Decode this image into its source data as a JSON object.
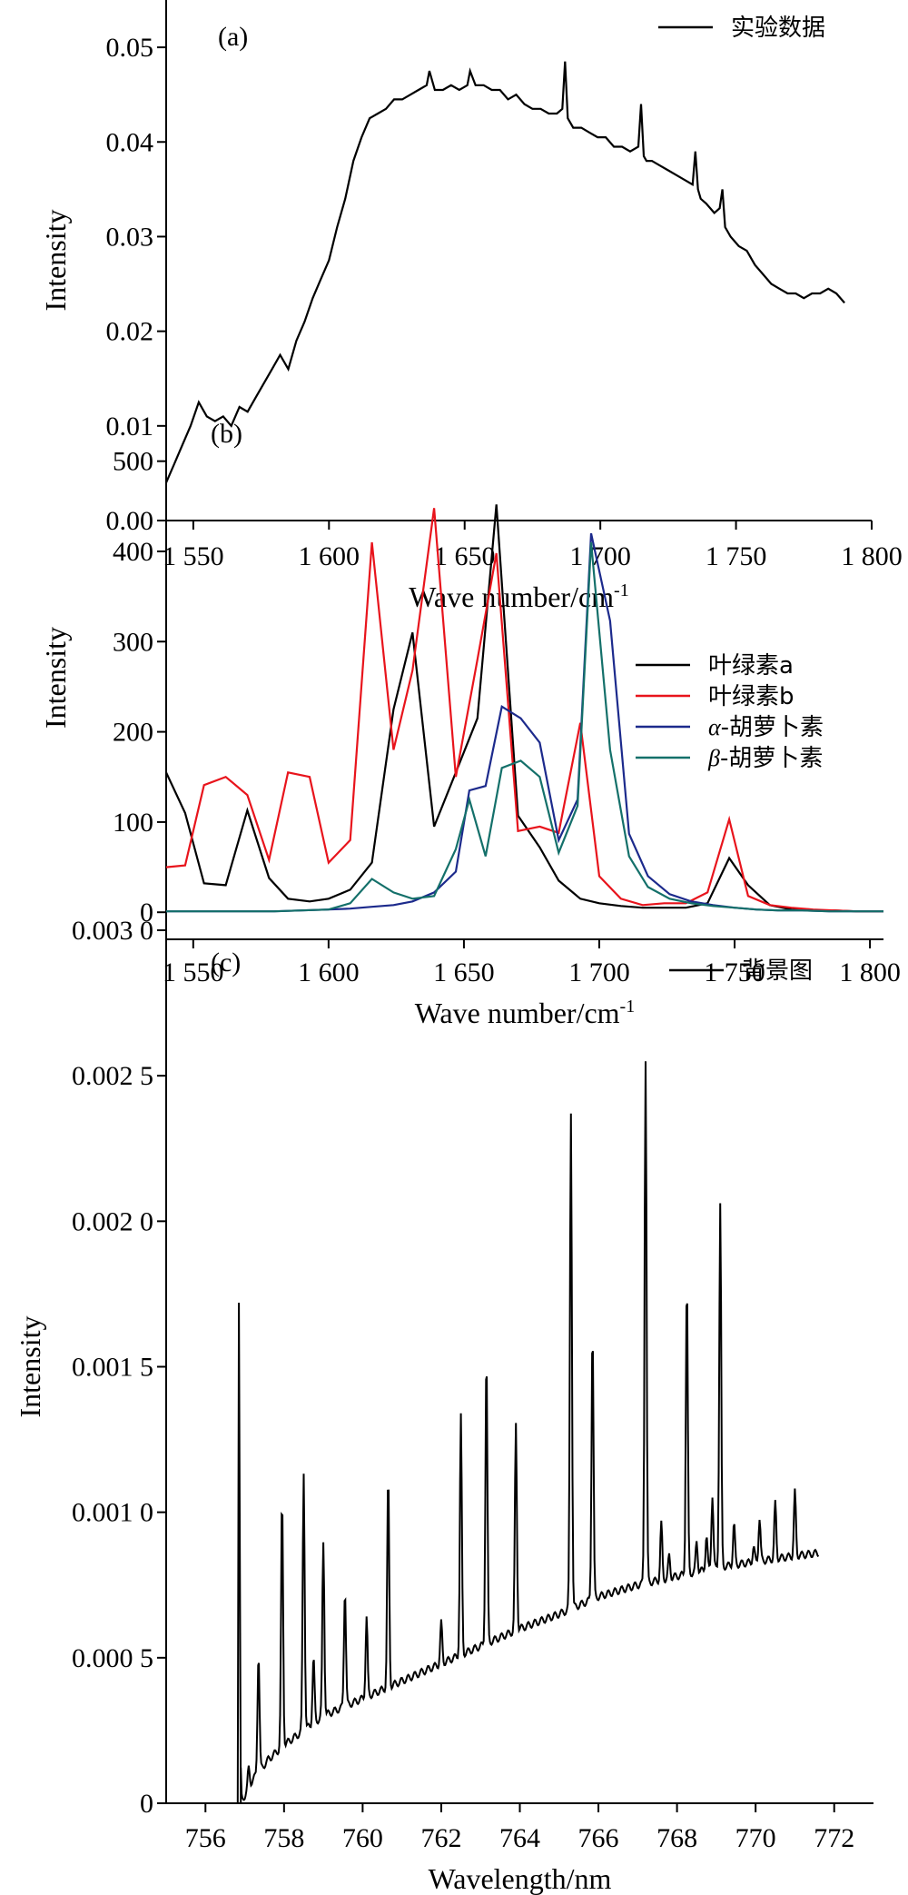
{
  "chart_data": [
    {
      "panel": "(a)",
      "type": "line",
      "xlabel": "Wave number/cm",
      "xlabel_sup": "-1",
      "ylabel": "Intensity",
      "xlim": [
        1540,
        1800
      ],
      "ylim": [
        0.0,
        0.055
      ],
      "x_ticks": [
        1550,
        1600,
        1650,
        1700,
        1750,
        1800
      ],
      "x_tick_labels": [
        "1 550",
        "1 600",
        "1 650",
        "1 700",
        "1 750",
        "1 800"
      ],
      "y_ticks": [
        0.0,
        0.01,
        0.02,
        0.03,
        0.04,
        0.05
      ],
      "y_tick_labels": [
        "0.00",
        "0.01",
        "0.02",
        "0.03",
        "0.04",
        "0.05"
      ],
      "legend_position": "top-right",
      "colors": {
        "实验数据": "#000000"
      },
      "series": [
        {
          "name": "实验数据",
          "x": [
            1540,
            1543,
            1546,
            1549,
            1552,
            1555,
            1558,
            1561,
            1564,
            1567,
            1570,
            1573,
            1576,
            1579,
            1582,
            1585,
            1588,
            1591,
            1594,
            1597,
            1600,
            1603,
            1606,
            1609,
            1612,
            1615,
            1618,
            1621,
            1624,
            1627,
            1630,
            1633,
            1636,
            1637,
            1639,
            1642,
            1645,
            1648,
            1651,
            1652,
            1654,
            1657,
            1660,
            1663,
            1666,
            1669,
            1672,
            1675,
            1678,
            1681,
            1684,
            1686,
            1687,
            1688,
            1690,
            1693,
            1696,
            1699,
            1702,
            1705,
            1708,
            1711,
            1714,
            1715,
            1716,
            1717,
            1719,
            1722,
            1725,
            1728,
            1731,
            1734,
            1735,
            1736,
            1737,
            1739,
            1742,
            1744,
            1745,
            1746,
            1748,
            1751,
            1754,
            1757,
            1760,
            1763,
            1766,
            1769,
            1772,
            1775,
            1778,
            1781,
            1784,
            1787,
            1790
          ],
          "y": [
            0.004,
            0.006,
            0.008,
            0.01,
            0.0125,
            0.011,
            0.0105,
            0.011,
            0.01,
            0.012,
            0.0115,
            0.013,
            0.0145,
            0.016,
            0.0175,
            0.016,
            0.019,
            0.021,
            0.0235,
            0.0255,
            0.0275,
            0.031,
            0.034,
            0.038,
            0.0405,
            0.0425,
            0.043,
            0.0435,
            0.0445,
            0.0445,
            0.045,
            0.0455,
            0.046,
            0.0475,
            0.0455,
            0.0455,
            0.046,
            0.0455,
            0.046,
            0.0475,
            0.046,
            0.046,
            0.0455,
            0.0455,
            0.0445,
            0.045,
            0.044,
            0.0435,
            0.0435,
            0.043,
            0.043,
            0.0435,
            0.0485,
            0.0425,
            0.0415,
            0.0415,
            0.041,
            0.0405,
            0.0405,
            0.0395,
            0.0395,
            0.039,
            0.0395,
            0.044,
            0.0385,
            0.038,
            0.038,
            0.0375,
            0.037,
            0.0365,
            0.036,
            0.0355,
            0.039,
            0.035,
            0.034,
            0.0335,
            0.0325,
            0.033,
            0.035,
            0.031,
            0.03,
            0.029,
            0.0285,
            0.027,
            0.026,
            0.025,
            0.0245,
            0.024,
            0.024,
            0.0235,
            0.024,
            0.024,
            0.0245,
            0.024,
            0.023
          ]
        }
      ]
    },
    {
      "panel": "(b)",
      "type": "line",
      "xlabel": "Wave number/cm",
      "xlabel_sup": "-1",
      "ylabel": "Intensity",
      "xlim": [
        1540,
        1805
      ],
      "ylim": [
        -30,
        550
      ],
      "x_ticks": [
        1550,
        1600,
        1650,
        1700,
        1750,
        1800
      ],
      "x_tick_labels": [
        "1 550",
        "1 600",
        "1 650",
        "1 700",
        "1 750",
        "1 800"
      ],
      "y_ticks": [
        0,
        100,
        200,
        300,
        400,
        500
      ],
      "y_tick_labels": [
        "0",
        "100",
        "200",
        "300",
        "400",
        "500"
      ],
      "legend_position": "top-right",
      "colors": {
        "叶绿素a": "#000000",
        "叶绿素b": "#e8141c",
        "α-胡萝卜素": "#1c2a8c",
        "β-胡萝卜素": "#14706a"
      },
      "series": [
        {
          "name": "叶绿素a",
          "name_prefix": "",
          "name_text": "叶绿素a",
          "x": [
            1540,
            1547,
            1554,
            1562,
            1570,
            1578,
            1585,
            1593,
            1600,
            1608,
            1616,
            1624,
            1631,
            1639,
            1647,
            1655,
            1662,
            1670,
            1678,
            1685,
            1693,
            1700,
            1708,
            1716,
            1724,
            1732,
            1740,
            1748,
            1755,
            1763,
            1771,
            1779,
            1787,
            1795,
            1805
          ],
          "y": [
            155,
            110,
            32,
            30,
            113,
            38,
            15,
            12,
            15,
            25,
            55,
            225,
            310,
            95,
            155,
            215,
            452,
            107,
            72,
            35,
            15,
            10,
            7,
            5,
            5,
            5,
            10,
            60,
            30,
            8,
            3,
            2,
            2,
            1,
            1
          ]
        },
        {
          "name": "叶绿素b",
          "name_prefix": "",
          "name_text": "叶绿素b",
          "x": [
            1540,
            1547,
            1554,
            1562,
            1570,
            1578,
            1585,
            1593,
            1600,
            1608,
            1616,
            1624,
            1631,
            1639,
            1647,
            1655,
            1662,
            1670,
            1678,
            1685,
            1693,
            1700,
            1708,
            1716,
            1724,
            1732,
            1740,
            1748,
            1755,
            1763,
            1771,
            1779,
            1787,
            1795,
            1805
          ],
          "y": [
            50,
            52,
            141,
            150,
            130,
            58,
            155,
            150,
            55,
            80,
            410,
            180,
            268,
            448,
            150,
            280,
            398,
            90,
            95,
            88,
            210,
            40,
            15,
            8,
            10,
            10,
            22,
            103,
            18,
            8,
            5,
            3,
            2,
            1,
            1
          ]
        },
        {
          "name": "α-胡萝卜素",
          "name_prefix": "α",
          "name_text": "-胡萝卜素",
          "x": [
            1540,
            1550,
            1560,
            1570,
            1580,
            1590,
            1600,
            1608,
            1616,
            1624,
            1631,
            1639,
            1647,
            1652,
            1658,
            1664,
            1671,
            1678,
            1685,
            1692,
            1697,
            1704,
            1711,
            1718,
            1726,
            1734,
            1742,
            1750,
            1758,
            1766,
            1775,
            1785,
            1795,
            1805
          ],
          "y": [
            1,
            1,
            1,
            1,
            1,
            2,
            3,
            4,
            6,
            8,
            12,
            22,
            45,
            135,
            140,
            228,
            215,
            188,
            80,
            125,
            420,
            323,
            87,
            40,
            20,
            12,
            8,
            5,
            3,
            2,
            2,
            1,
            1,
            1
          ]
        },
        {
          "name": "β-胡萝卜素",
          "name_prefix": "β",
          "name_text": "-胡萝卜素",
          "x": [
            1540,
            1550,
            1560,
            1570,
            1580,
            1590,
            1600,
            1608,
            1616,
            1624,
            1631,
            1639,
            1647,
            1652,
            1658,
            1664,
            1671,
            1678,
            1685,
            1692,
            1697,
            1704,
            1711,
            1718,
            1726,
            1734,
            1742,
            1750,
            1758,
            1766,
            1775,
            1785,
            1795,
            1805
          ],
          "y": [
            1,
            1,
            1,
            1,
            1,
            2,
            3,
            10,
            37,
            22,
            15,
            18,
            70,
            125,
            62,
            160,
            168,
            150,
            66,
            118,
            410,
            180,
            62,
            28,
            15,
            10,
            7,
            5,
            3,
            2,
            2,
            1,
            1,
            1
          ]
        }
      ]
    },
    {
      "panel": "(c)",
      "type": "line",
      "xlabel": "Wavelength/nm",
      "ylabel": "Intensity",
      "xlim": [
        755,
        773
      ],
      "ylim": [
        0,
        0.003
      ],
      "x_ticks": [
        756,
        758,
        760,
        762,
        764,
        766,
        768,
        770,
        772
      ],
      "x_tick_labels": [
        "756",
        "758",
        "760",
        "762",
        "764",
        "766",
        "768",
        "770",
        "772"
      ],
      "y_ticks": [
        0,
        0.0005,
        0.001,
        0.0015,
        0.002,
        0.0025,
        0.003
      ],
      "y_tick_labels": [
        "0",
        "0.000 5",
        "0.001 0",
        "0.001 5",
        "0.002 0",
        "0.002 5",
        "0.003 0"
      ],
      "legend_position": "top-right",
      "colors": {
        "背景图": "#000000"
      },
      "baseline": {
        "x": [
          756.9,
          757.2,
          757.6,
          758.0,
          758.5,
          759.0,
          760.0,
          761.0,
          762.0,
          763.0,
          764.0,
          765.0,
          766.0,
          767.0,
          768.0,
          769.0,
          770.0,
          771.0,
          771.6
        ],
        "y": [
          0.0,
          8e-05,
          0.00015,
          0.0002,
          0.00025,
          0.0003,
          0.00036,
          0.00042,
          0.00048,
          0.00054,
          0.0006,
          0.00065,
          0.00071,
          0.00075,
          0.00078,
          0.00081,
          0.00083,
          0.00085,
          0.00086
        ]
      },
      "series": [
        {
          "name": "背景图",
          "peaks": [
            {
              "x": 756.85,
              "y": 0.00172
            },
            {
              "x": 757.1,
              "y": 0.00012
            },
            {
              "x": 757.35,
              "y": 0.00052
            },
            {
              "x": 757.95,
              "y": 0.00105
            },
            {
              "x": 758.5,
              "y": 0.00114
            },
            {
              "x": 758.75,
              "y": 0.0005
            },
            {
              "x": 759.0,
              "y": 0.0009
            },
            {
              "x": 759.55,
              "y": 0.00074
            },
            {
              "x": 760.1,
              "y": 0.00064
            },
            {
              "x": 760.65,
              "y": 0.00112
            },
            {
              "x": 762.0,
              "y": 0.00062
            },
            {
              "x": 762.5,
              "y": 0.00133
            },
            {
              "x": 763.15,
              "y": 0.00154
            },
            {
              "x": 763.9,
              "y": 0.0013
            },
            {
              "x": 765.3,
              "y": 0.00238
            },
            {
              "x": 765.85,
              "y": 0.00163
            },
            {
              "x": 767.2,
              "y": 0.00256
            },
            {
              "x": 767.6,
              "y": 0.00096
            },
            {
              "x": 767.8,
              "y": 0.00085
            },
            {
              "x": 768.25,
              "y": 0.00179
            },
            {
              "x": 768.5,
              "y": 0.0009
            },
            {
              "x": 768.75,
              "y": 0.00092
            },
            {
              "x": 768.9,
              "y": 0.00106
            },
            {
              "x": 769.1,
              "y": 0.00206
            },
            {
              "x": 769.45,
              "y": 0.00096
            },
            {
              "x": 769.95,
              "y": 0.00088
            },
            {
              "x": 770.1,
              "y": 0.00098
            },
            {
              "x": 770.5,
              "y": 0.00103
            },
            {
              "x": 771.0,
              "y": 0.00107
            }
          ]
        }
      ]
    }
  ]
}
